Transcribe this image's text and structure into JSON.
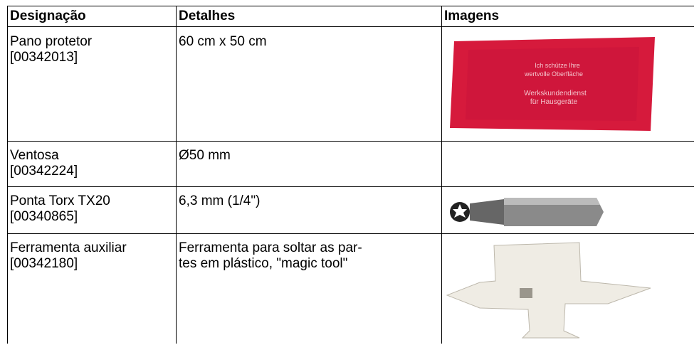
{
  "table": {
    "header": [
      "Designação",
      "Detalhes",
      "Imagens"
    ],
    "rows": [
      {
        "name": "Pano protetor",
        "code": "[00342013]",
        "details": [
          "60 cm x 50 cm"
        ],
        "image_text": [
          "Ich schütze Ihre",
          "wertvolle Oberfläche",
          "Werkskundendienst",
          "für Hausgeräte"
        ]
      },
      {
        "name": "Ventosa",
        "code": "[00342224]",
        "details": [
          "Ø50 mm"
        ]
      },
      {
        "name": "Ponta Torx TX20",
        "code": "[00340865]",
        "details": [
          "6,3 mm (1/4\")"
        ]
      },
      {
        "name": "Ferramenta auxiliar",
        "code": "[00342180]",
        "details": [
          "Ferramenta para soltar as par-",
          "tes em plástico, \"magic tool\""
        ]
      }
    ]
  }
}
